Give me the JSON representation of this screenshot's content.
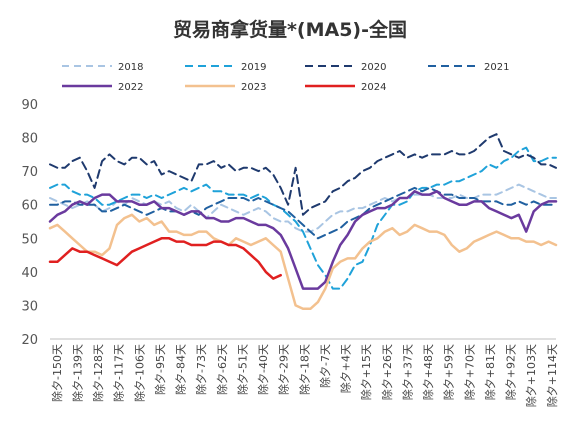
{
  "chart_data": {
    "type": "line",
    "title": "贸易商拿货量*(MA5)-全国",
    "xlabel": "",
    "ylabel": "",
    "ylim": [
      20,
      90
    ],
    "yticks": [
      20,
      30,
      40,
      50,
      60,
      70,
      80,
      90
    ],
    "grid": false,
    "legend_position": "top",
    "x_count": 69,
    "x_tick_labels": [
      "除夕-150天",
      "除夕-139天",
      "除夕-128天",
      "除夕-117天",
      "除夕-106天",
      "除夕-95天",
      "除夕-84天",
      "除夕-73天",
      "除夕-62天",
      "除夕-51天",
      "除夕-40天",
      "除夕-29天",
      "除夕-18天",
      "除夕-7天",
      "除夕+4天",
      "除夕+15天",
      "除夕+26天",
      "除夕+37天",
      "除夕+48天",
      "除夕+59天",
      "除夕+70天",
      "除夕+81天",
      "除夕+92天",
      "除夕+103天",
      "除夕+114天"
    ],
    "series": [
      {
        "name": "2018",
        "color": "#a9c5e3",
        "dash": "7,5",
        "width": 2,
        "values": [
          62,
          61,
          60,
          59,
          60,
          61,
          60,
          58,
          59,
          61,
          60,
          62,
          61,
          60,
          61,
          60,
          61,
          59,
          58,
          60,
          58,
          56,
          58,
          60,
          59,
          58,
          57,
          58,
          59,
          58,
          56,
          55,
          55,
          53,
          52,
          52,
          53,
          55,
          57,
          58,
          58,
          59,
          59,
          60,
          61,
          62,
          61,
          62,
          62,
          63,
          63,
          63,
          62,
          62,
          62,
          63,
          62,
          62,
          63,
          63,
          63,
          64,
          65,
          66,
          65,
          64,
          63,
          62,
          62
        ]
      },
      {
        "name": "2019",
        "color": "#1fa2d9",
        "dash": "8,5",
        "width": 2,
        "values": [
          65,
          66,
          66,
          64,
          63,
          63,
          62,
          60,
          60,
          61,
          62,
          63,
          63,
          62,
          63,
          62,
          63,
          64,
          65,
          64,
          65,
          66,
          64,
          64,
          63,
          63,
          63,
          62,
          63,
          62,
          60,
          59,
          57,
          55,
          52,
          47,
          42,
          39,
          35,
          35,
          38,
          42,
          43,
          48,
          54,
          57,
          60,
          60,
          61,
          64,
          65,
          65,
          66,
          66,
          67,
          67,
          68,
          69,
          70,
          72,
          71,
          73,
          74,
          76,
          77,
          73,
          73,
          74,
          74
        ]
      },
      {
        "name": "2020",
        "color": "#1f3a6e",
        "dash": "8,5",
        "width": 2,
        "values": [
          72,
          71,
          71,
          73,
          74,
          70,
          65,
          73,
          75,
          73,
          72,
          74,
          74,
          72,
          73,
          69,
          70,
          69,
          68,
          67,
          72,
          72,
          73,
          71,
          72,
          70,
          71,
          71,
          70,
          71,
          69,
          65,
          60,
          71,
          57,
          59,
          60,
          61,
          64,
          65,
          67,
          68,
          70,
          71,
          73,
          74,
          75,
          76,
          74,
          75,
          74,
          75,
          75,
          75,
          76,
          75,
          75,
          76,
          78,
          80,
          81,
          76,
          75,
          74,
          75,
          74,
          72,
          72,
          71
        ]
      },
      {
        "name": "2021",
        "color": "#2060a0",
        "dash": "8,5",
        "width": 2,
        "values": [
          60,
          60,
          61,
          61,
          60,
          60,
          60,
          58,
          58,
          59,
          60,
          59,
          58,
          57,
          58,
          59,
          58,
          58,
          57,
          58,
          57,
          59,
          60,
          61,
          62,
          62,
          62,
          61,
          62,
          61,
          60,
          59,
          58,
          56,
          54,
          52,
          50,
          51,
          52,
          53,
          55,
          56,
          57,
          59,
          60,
          61,
          62,
          63,
          64,
          65,
          64,
          65,
          64,
          63,
          63,
          62,
          62,
          62,
          61,
          61,
          61,
          60,
          60,
          61,
          60,
          61,
          60,
          60,
          60
        ]
      },
      {
        "name": "2022",
        "color": "#6a3a9e",
        "dash": "",
        "width": 2.5,
        "values": [
          55,
          57,
          58,
          60,
          61,
          60,
          62,
          63,
          63,
          61,
          61,
          61,
          60,
          60,
          61,
          59,
          59,
          58,
          57,
          58,
          58,
          56,
          56,
          55,
          55,
          56,
          56,
          55,
          54,
          54,
          53,
          51,
          47,
          41,
          35,
          35,
          35,
          37,
          43,
          48,
          51,
          55,
          57,
          58,
          59,
          59,
          60,
          62,
          62,
          64,
          63,
          63,
          64,
          62,
          61,
          60,
          60,
          61,
          61,
          59,
          58,
          57,
          56,
          57,
          52,
          58,
          60,
          61,
          61
        ]
      },
      {
        "name": "2023",
        "color": "#f3c18f",
        "dash": "",
        "width": 2.5,
        "values": [
          53,
          54,
          52,
          50,
          48,
          46,
          46,
          45,
          47,
          54,
          56,
          57,
          55,
          56,
          54,
          55,
          52,
          52,
          51,
          51,
          52,
          52,
          50,
          49,
          48,
          50,
          49,
          48,
          49,
          50,
          48,
          46,
          38,
          30,
          29,
          29,
          31,
          35,
          41,
          43,
          44,
          44,
          47,
          49,
          50,
          52,
          53,
          51,
          52,
          54,
          53,
          52,
          52,
          51,
          48,
          46,
          47,
          49,
          50,
          51,
          52,
          51,
          50,
          50,
          49,
          49,
          48,
          49,
          48
        ]
      },
      {
        "name": "2024",
        "color": "#e02020",
        "dash": "",
        "width": 2.5,
        "values": [
          43,
          43,
          45,
          47,
          46,
          46,
          45,
          44,
          43,
          42,
          44,
          46,
          47,
          48,
          49,
          50,
          50,
          49,
          49,
          48,
          48,
          48,
          49,
          49,
          48,
          48,
          47,
          45,
          43,
          40,
          38,
          39,
          null,
          null,
          null,
          null,
          null,
          null,
          null,
          null,
          null,
          null,
          null,
          null,
          null,
          null,
          null,
          null,
          null,
          null,
          null,
          null,
          null,
          null,
          null,
          null,
          null,
          null,
          null,
          null,
          null,
          null,
          null,
          null,
          null,
          null,
          null,
          null,
          null
        ]
      }
    ]
  }
}
